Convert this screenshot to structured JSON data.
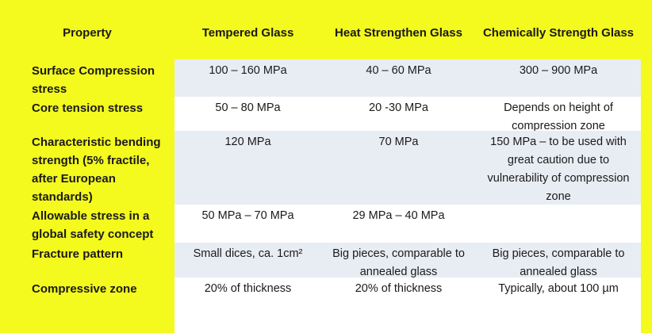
{
  "table": {
    "header": [
      "Property",
      "Tempered Glass",
      "Heat Strengthen Glass",
      "Chemically Strength Glass"
    ],
    "rows": [
      [
        "Surface Compression stress",
        "100 – 160 MPa",
        "40 – 60 MPa",
        "300 – 900 MPa"
      ],
      [
        "Core tension stress",
        "50 – 80 MPa",
        "20 -30 MPa",
        "Depends on height of compression zone"
      ],
      [
        "Characteristic bending strength (5% fractile, after European standards)",
        "120 MPa",
        "70 MPa",
        "150 MPa – to be used with great caution due to vulnerability of compression zone"
      ],
      [
        "Allowable stress in a global safety concept",
        "50 MPa – 70 MPa",
        "29 MPa – 40 MPa",
        null
      ],
      [
        "Fracture pattern",
        "Small dices, ca. 1cm²",
        "Big pieces, comparable to annealed glass",
        "Big pieces, comparable to annealed glass"
      ],
      [
        "Compressive zone",
        "20% of thickness",
        "20% of thickness",
        "Typically, about 100 µm"
      ]
    ]
  }
}
